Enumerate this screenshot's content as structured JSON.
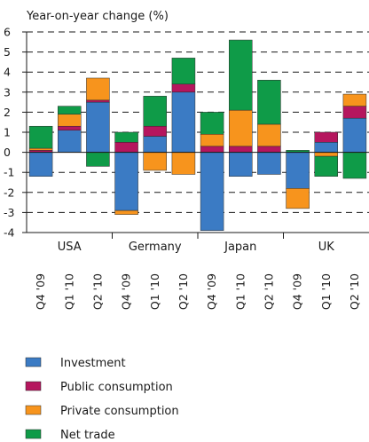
{
  "chart_data": {
    "type": "bar",
    "stacked": true,
    "ylabel": "Year-on-year change (%)",
    "ylim": [
      -4,
      6
    ],
    "yticks": [
      "6",
      "5",
      "4",
      "3",
      "2",
      "1",
      "0",
      "-1",
      "-2",
      "-3",
      "-4"
    ],
    "grid": true,
    "groups": [
      "USA",
      "Germany",
      "Japan",
      "UK"
    ],
    "categories": [
      "Q4 '09",
      "Q1 '10",
      "Q2 '10",
      "Q4 '09",
      "Q1 '10",
      "Q2 '10",
      "Q4 '09",
      "Q1 '10",
      "Q2 '10",
      "Q4 '09",
      "Q1 '10",
      "Q2 '10"
    ],
    "series": [
      {
        "name": "Investment",
        "color": "#3b7bc4",
        "values": [
          -1.2,
          1.1,
          2.5,
          -2.9,
          0.8,
          3.0,
          -3.9,
          -1.2,
          -1.1,
          -1.8,
          0.5,
          1.7
        ]
      },
      {
        "name": "Public consumption",
        "color": "#b5165e",
        "values": [
          0.1,
          0.2,
          0.1,
          0.5,
          0.5,
          0.4,
          0.3,
          0.3,
          0.3,
          0.0,
          0.5,
          0.6
        ]
      },
      {
        "name": "Private consumption",
        "color": "#f7941d",
        "values": [
          0.1,
          0.6,
          1.1,
          -0.2,
          -0.9,
          -1.1,
          0.6,
          1.8,
          1.1,
          -1.0,
          -0.2,
          0.6
        ]
      },
      {
        "name": "Net trade",
        "color": "#0f9b48",
        "values": [
          1.1,
          0.4,
          -0.7,
          0.5,
          1.5,
          1.3,
          1.1,
          3.5,
          2.2,
          0.1,
          -1.0,
          -1.3
        ]
      }
    ],
    "legend_position": "bottom"
  }
}
